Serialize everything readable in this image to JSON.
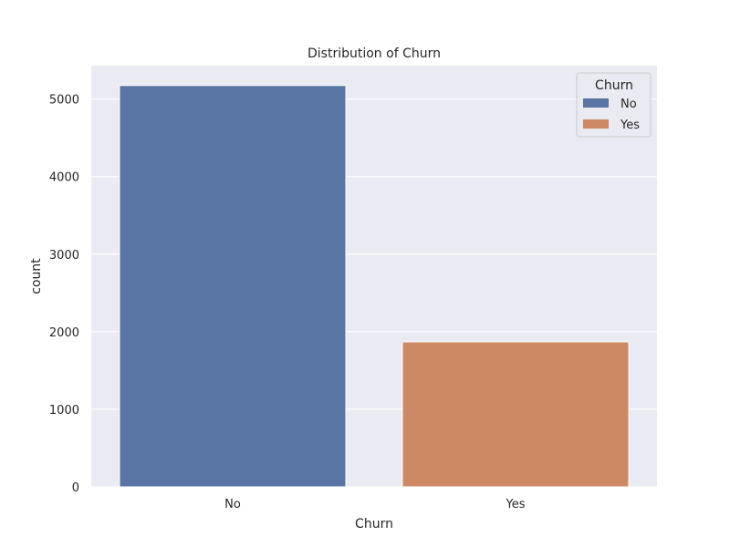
{
  "chart_data": {
    "type": "bar",
    "title": "Distribution of Churn",
    "xlabel": "Churn",
    "ylabel": "count",
    "categories": [
      "No",
      "Yes"
    ],
    "values": [
      5174,
      1869
    ],
    "colors": [
      "#5875a4",
      "#cc8963"
    ],
    "ylim": [
      0,
      5430
    ],
    "yticks": [
      0,
      1000,
      2000,
      3000,
      4000,
      5000
    ],
    "grid": true,
    "background": "#eaeaf2",
    "legend": {
      "title": "Churn",
      "position": "top-right",
      "entries": [
        "No",
        "Yes"
      ]
    }
  }
}
